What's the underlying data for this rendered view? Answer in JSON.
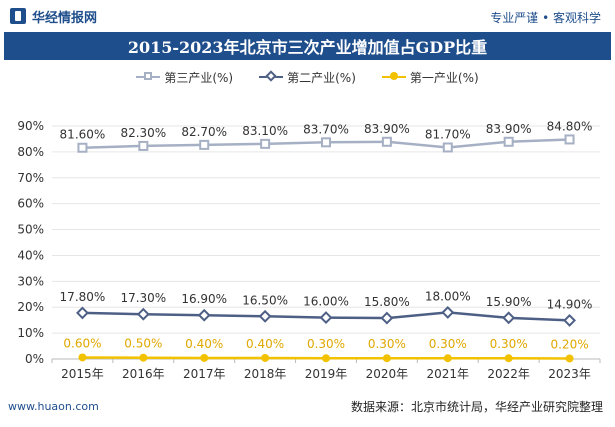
{
  "header": {
    "logo_text": "华经情报网",
    "slogan": "专业严谨 • 客观科学"
  },
  "footer": {
    "url": "www.huaon.com",
    "source": "数据来源：北京市统计局，华经产业研究院整理"
  },
  "colors": {
    "brand": "#1f4e8c",
    "tertiary": "#a6b0c4",
    "secondary": "#4e5f85",
    "primary": "#f2c200"
  },
  "chart_data": {
    "type": "line",
    "title": "2015-2023年北京市三次产业增加值占GDP比重",
    "categories": [
      "2015年",
      "2016年",
      "2017年",
      "2018年",
      "2019年",
      "2020年",
      "2021年",
      "2022年",
      "2023年"
    ],
    "ylim": [
      0,
      90
    ],
    "yticks": [
      "0%",
      "10%",
      "20%",
      "30%",
      "40%",
      "50%",
      "60%",
      "70%",
      "80%",
      "90%"
    ],
    "grid": true,
    "legend": "top",
    "series": [
      {
        "name": "第三产业(%)",
        "values": [
          81.6,
          82.3,
          82.7,
          83.1,
          83.7,
          83.9,
          81.7,
          83.9,
          84.8
        ],
        "labels": [
          "81.60%",
          "82.30%",
          "82.70%",
          "83.10%",
          "83.70%",
          "83.90%",
          "81.70%",
          "83.90%",
          "84.80%"
        ]
      },
      {
        "name": "第二产业(%)",
        "values": [
          17.8,
          17.3,
          16.9,
          16.5,
          16.0,
          15.8,
          18.0,
          15.9,
          14.9
        ],
        "labels": [
          "17.80%",
          "17.30%",
          "16.90%",
          "16.50%",
          "16.00%",
          "15.80%",
          "18.00%",
          "15.90%",
          "14.90%"
        ]
      },
      {
        "name": "第一产业(%)",
        "values": [
          0.6,
          0.5,
          0.4,
          0.4,
          0.3,
          0.3,
          0.3,
          0.3,
          0.2
        ],
        "labels": [
          "0.60%",
          "0.50%",
          "0.40%",
          "0.40%",
          "0.30%",
          "0.30%",
          "0.30%",
          "0.30%",
          "0.20%"
        ]
      }
    ]
  }
}
